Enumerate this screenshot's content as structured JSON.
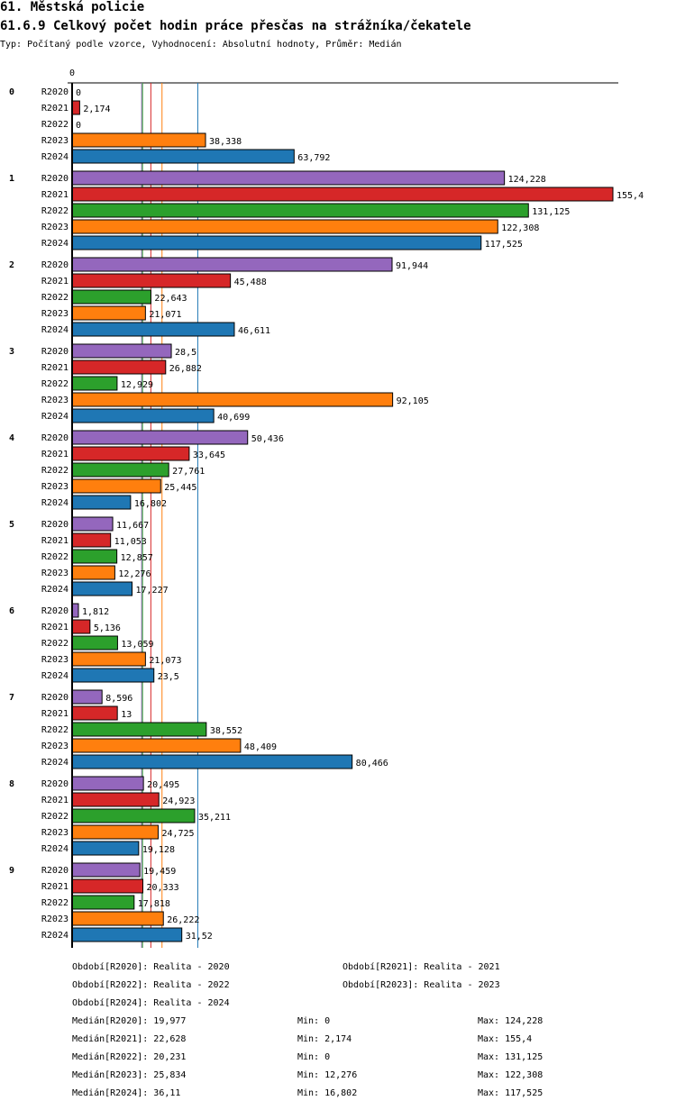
{
  "header": {
    "section": "61. Městská policie",
    "title": "61.6.9 Celkový počet hodin práce přesčas na strážníka/čekatele",
    "subtitle": "Typ: Počítaný podle vzorce, Vyhodnocení: Absolutní hodnoty, Průměr: Medián"
  },
  "chart_data": {
    "type": "bar",
    "orientation": "horizontal",
    "title": "61.6.9 Celkový počet hodin práce přesčas na strážníka/čekatele",
    "xlim": [
      0,
      155.4
    ],
    "x_tick_labels": [
      "0"
    ],
    "categories": [
      "0",
      "1",
      "2",
      "3",
      "4",
      "5",
      "6",
      "7",
      "8",
      "9"
    ],
    "series": [
      {
        "name": "R2020",
        "color": "#9467bd",
        "values": [
          0,
          124.228,
          91.944,
          28.5,
          50.436,
          11.667,
          1.812,
          8.596,
          20.495,
          19.459
        ],
        "labels": [
          "0",
          "124,228",
          "91,944",
          "28,5",
          "50,436",
          "11,667",
          "1,812",
          "8,596",
          "20,495",
          "19,459"
        ],
        "median": 19.977
      },
      {
        "name": "R2021",
        "color": "#d62728",
        "values": [
          2.174,
          155.4,
          45.488,
          26.882,
          33.645,
          11.053,
          5.136,
          13,
          24.923,
          20.333
        ],
        "labels": [
          "2,174",
          "155,4",
          "45,488",
          "26,882",
          "33,645",
          "11,053",
          "5,136",
          "13",
          "24,923",
          "20,333"
        ],
        "median": 22.628
      },
      {
        "name": "R2022",
        "color": "#2ca02c",
        "values": [
          0,
          131.125,
          22.643,
          12.929,
          27.761,
          12.857,
          13.059,
          38.552,
          35.211,
          17.818
        ],
        "labels": [
          "0",
          "131,125",
          "22,643",
          "12,929",
          "27,761",
          "12,857",
          "13,059",
          "38,552",
          "35,211",
          "17,818"
        ],
        "median": 20.231
      },
      {
        "name": "R2023",
        "color": "#ff7f0e",
        "values": [
          38.338,
          122.308,
          21.071,
          92.105,
          25.445,
          12.276,
          21.073,
          48.409,
          24.725,
          26.222
        ],
        "labels": [
          "38,338",
          "122,308",
          "21,071",
          "92,105",
          "25,445",
          "12,276",
          "21,073",
          "48,409",
          "24,725",
          "26,222"
        ],
        "median": 25.834
      },
      {
        "name": "R2024",
        "color": "#1f77b4",
        "values": [
          63.792,
          117.525,
          46.611,
          40.699,
          16.802,
          17.227,
          23.5,
          80.466,
          19.128,
          31.52
        ],
        "labels": [
          "63,792",
          "117,525",
          "46,611",
          "40,699",
          "16,802",
          "17,227",
          "23,5",
          "80,466",
          "19,128",
          "31,52"
        ],
        "median": 36.11
      }
    ]
  },
  "legend": {
    "periods": [
      "Období[R2020]: Realita - 2020",
      "Období[R2021]: Realita - 2021",
      "Období[R2022]: Realita - 2022",
      "Období[R2023]: Realita - 2023",
      "Období[R2024]: Realita - 2024"
    ],
    "stats": [
      {
        "median": "Medián[R2020]: 19,977",
        "min": "Min: 0",
        "max": "Max: 124,228"
      },
      {
        "median": "Medián[R2021]: 22,628",
        "min": "Min: 2,174",
        "max": "Max: 155,4"
      },
      {
        "median": "Medián[R2022]: 20,231",
        "min": "Min: 0",
        "max": "Max: 131,125"
      },
      {
        "median": "Medián[R2023]: 25,834",
        "min": "Min: 12,276",
        "max": "Max: 122,308"
      },
      {
        "median": "Medián[R2024]: 36,11",
        "min": "Min: 16,802",
        "max": "Max: 117,525"
      }
    ]
  }
}
